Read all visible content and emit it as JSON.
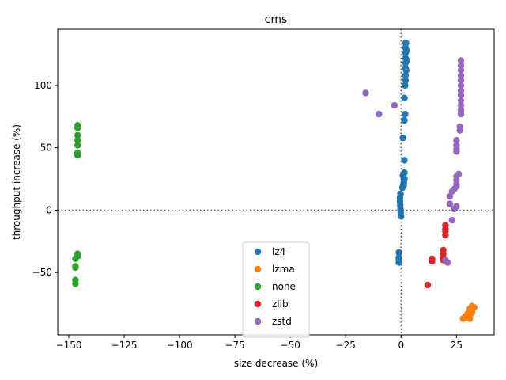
{
  "chart_data": {
    "type": "scatter",
    "title": "cms",
    "xlabel": "size decrease (%)",
    "ylabel": "throughput increase (%)",
    "xlim": [
      -155,
      42
    ],
    "ylim": [
      -100,
      145
    ],
    "xticks": [
      -150,
      -125,
      -100,
      -75,
      -50,
      -25,
      0,
      25
    ],
    "xtick_labels": [
      "−150",
      "−125",
      "−100",
      "−75",
      "−50",
      "−25",
      "0",
      "25"
    ],
    "yticks": [
      -50,
      0,
      50,
      100
    ],
    "ytick_labels": [
      "−50",
      "0",
      "50",
      "100"
    ],
    "reference_lines": {
      "x": 0,
      "y": 0,
      "style": "dotted"
    },
    "grid": false,
    "legend_position": "lower-center",
    "series": [
      {
        "name": "lz4",
        "color": "#1f77b4",
        "points": [
          [
            2,
            134
          ],
          [
            2,
            130
          ],
          [
            2,
            126
          ],
          [
            2,
            122
          ],
          [
            2,
            118
          ],
          [
            2,
            114
          ],
          [
            2,
            108
          ],
          [
            2,
            104
          ],
          [
            1.8,
            100
          ],
          [
            1.5,
            90
          ],
          [
            1.8,
            77
          ],
          [
            1.5,
            72
          ],
          [
            2.2,
            134
          ],
          [
            2.5,
            128
          ],
          [
            2.6,
            120
          ],
          [
            2.3,
            112
          ],
          [
            0.8,
            58
          ],
          [
            1.5,
            40
          ],
          [
            1.5,
            30
          ],
          [
            1,
            27
          ],
          [
            1.5,
            25
          ],
          [
            1.2,
            22
          ],
          [
            1,
            20
          ],
          [
            0.6,
            18
          ],
          [
            1.4,
            24
          ],
          [
            0.8,
            28
          ],
          [
            1.2,
            20
          ],
          [
            -0.3,
            13
          ],
          [
            -0.5,
            10
          ],
          [
            -0.5,
            7
          ],
          [
            -0.4,
            4
          ],
          [
            -0.3,
            1
          ],
          [
            -0.2,
            -2
          ],
          [
            0,
            -5
          ],
          [
            -1,
            -34
          ],
          [
            -1,
            -38
          ],
          [
            -1,
            -40
          ],
          [
            -1,
            -42
          ]
        ]
      },
      {
        "name": "lzma",
        "color": "#ff7f0e",
        "points": [
          [
            28,
            -87
          ],
          [
            30,
            -86
          ],
          [
            31,
            -87
          ],
          [
            29,
            -85
          ],
          [
            30,
            -83
          ],
          [
            31,
            -81
          ],
          [
            32,
            -82
          ],
          [
            32,
            -80
          ],
          [
            33,
            -78
          ],
          [
            32,
            -77
          ],
          [
            31,
            -79
          ],
          [
            30,
            -84
          ],
          [
            29,
            -86
          ],
          [
            31.5,
            -83
          ]
        ]
      },
      {
        "name": "none",
        "color": "#2ca02c",
        "points": [
          [
            -146,
            68
          ],
          [
            -146,
            66
          ],
          [
            -146,
            60
          ],
          [
            -146,
            56
          ],
          [
            -146,
            52
          ],
          [
            -146,
            46
          ],
          [
            -146,
            44
          ],
          [
            -146,
            -35
          ],
          [
            -146,
            -37
          ],
          [
            -147,
            -39
          ],
          [
            -147,
            -45
          ],
          [
            -147,
            -46
          ],
          [
            -147,
            -56
          ],
          [
            -147,
            -59
          ]
        ]
      },
      {
        "name": "zlib",
        "color": "#d62728",
        "points": [
          [
            20,
            -12
          ],
          [
            20,
            -15
          ],
          [
            20,
            -17
          ],
          [
            20,
            -20
          ],
          [
            19,
            -32
          ],
          [
            19,
            -35
          ],
          [
            19,
            -38
          ],
          [
            19,
            -40
          ],
          [
            14,
            -39
          ],
          [
            14,
            -41
          ],
          [
            12,
            -60
          ]
        ]
      },
      {
        "name": "zstd",
        "color": "#9467bd",
        "points": [
          [
            27,
            120
          ],
          [
            27,
            116
          ],
          [
            27,
            112
          ],
          [
            27,
            108
          ],
          [
            27,
            104
          ],
          [
            27,
            100
          ],
          [
            27,
            96
          ],
          [
            27,
            92
          ],
          [
            27,
            88
          ],
          [
            27,
            84
          ],
          [
            27,
            80
          ],
          [
            27,
            77
          ],
          [
            26.5,
            67
          ],
          [
            26.5,
            64
          ],
          [
            25,
            56
          ],
          [
            25,
            52
          ],
          [
            25,
            49
          ],
          [
            25,
            47
          ],
          [
            26,
            29
          ],
          [
            25,
            27
          ],
          [
            25,
            24
          ],
          [
            25,
            21
          ],
          [
            25,
            19
          ],
          [
            24,
            17
          ],
          [
            23,
            15
          ],
          [
            22,
            11
          ],
          [
            22,
            5
          ],
          [
            25,
            3
          ],
          [
            24,
            1
          ],
          [
            23,
            -8
          ],
          [
            20,
            -40
          ],
          [
            21,
            -42
          ],
          [
            -16,
            94
          ],
          [
            -10,
            77
          ],
          [
            -3,
            84
          ]
        ]
      }
    ]
  }
}
